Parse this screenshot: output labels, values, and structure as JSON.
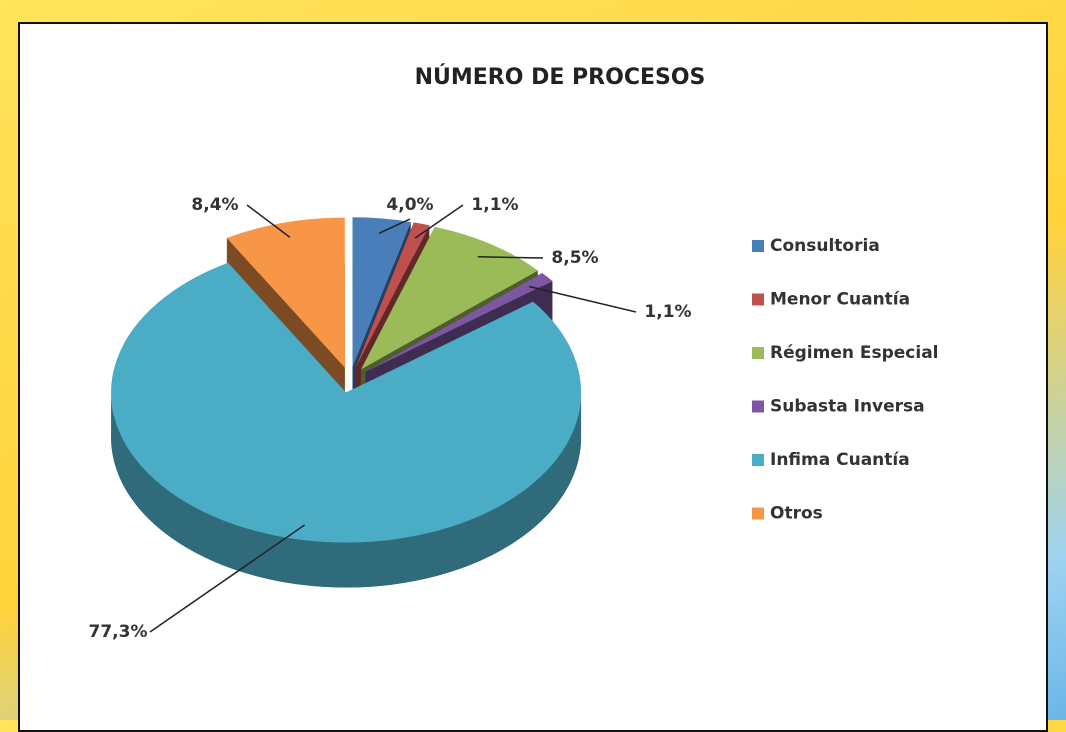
{
  "chart_data": {
    "type": "pie",
    "title": "NÚMERO DE PROCESOS",
    "categories": [
      "Consultoria",
      "Menor Cuantía",
      "Régimen Especial",
      "Subasta Inversa",
      "Infima Cuantía",
      "Otros"
    ],
    "values": [
      4.0,
      1.1,
      8.5,
      1.1,
      77.3,
      8.4
    ],
    "value_labels": [
      "4,0%",
      "1,1%",
      "8,5%",
      "1,1%",
      "77,3%",
      "8,4%"
    ],
    "colors": [
      "#4a7ebb",
      "#c0504d",
      "#9bbb59",
      "#7e57a3",
      "#4bacc6",
      "#f79646"
    ],
    "legend": "right"
  }
}
